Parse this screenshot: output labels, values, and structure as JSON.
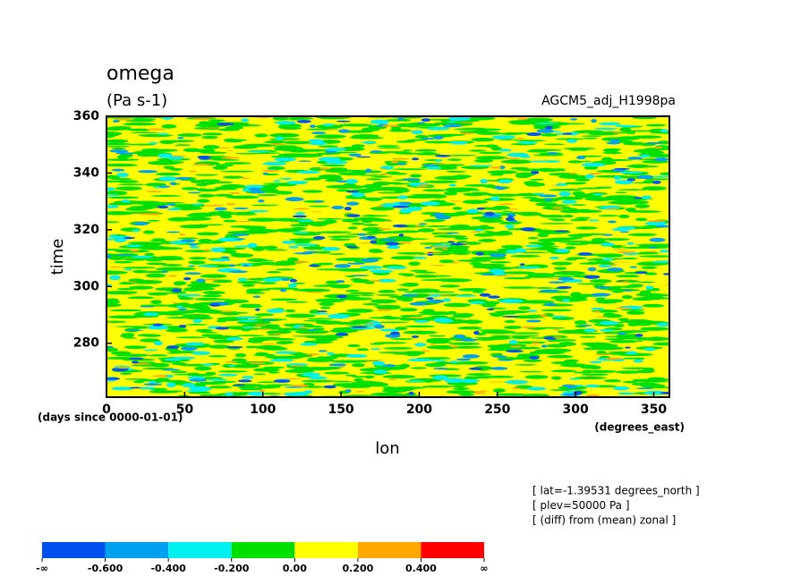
{
  "chart_data": {
    "type": "heatmap",
    "title": "omega",
    "subtitle": "(Pa s-1)",
    "label_right": "AGCM5_adj_H1998pa",
    "xlabel": "lon",
    "xunits": "(degrees_east)",
    "ylabel": "time",
    "yunits": "(days since 0000-01-01)",
    "xlim": [
      0,
      360
    ],
    "xticks": [
      0,
      50,
      100,
      150,
      200,
      250,
      300,
      350
    ],
    "ylim": [
      261,
      360
    ],
    "yticks": [
      280,
      300,
      320,
      340,
      360
    ],
    "notes": [
      "[ lat=-1.39531 degrees_north ]",
      "[ plev=50000 Pa ]",
      "[ (diff) from (mean) zonal ]"
    ],
    "colorbar": {
      "colors": [
        "#0050f0",
        "#00a0f0",
        "#00f0f0",
        "#00e000",
        "#ffff00",
        "#ffa800",
        "#ff0000"
      ],
      "ticks": [
        "-∞",
        {
          "value": -0.6,
          "label": "-0.600"
        },
        {
          "value": -0.4,
          "label": "-0.400"
        },
        {
          "value": -0.2,
          "label": "-0.200"
        },
        {
          "value": 0,
          "label": "0.00"
        },
        {
          "value": 0.2,
          "label": "0.200"
        },
        {
          "value": 0.4,
          "label": "0.400"
        },
        "∞"
      ]
    }
  }
}
